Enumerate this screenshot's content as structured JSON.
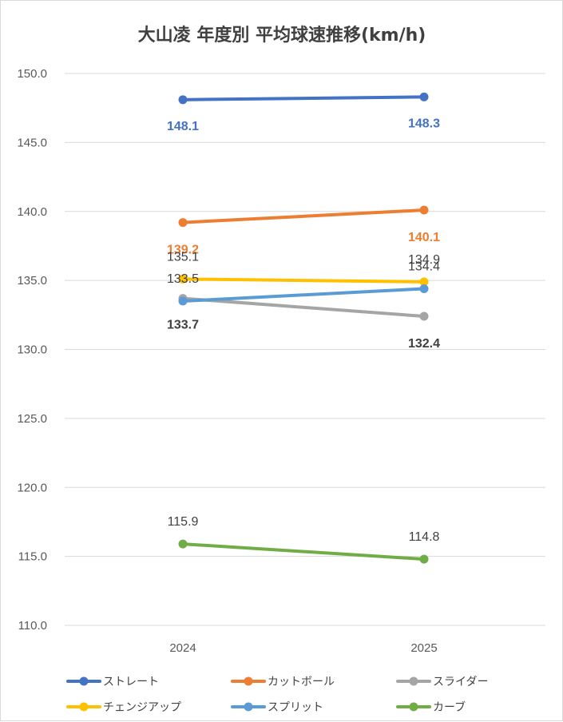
{
  "chart_data": {
    "type": "line",
    "title": "大山凌 年度別 平均球速推移(km/h)",
    "categories": [
      "2024",
      "2025"
    ],
    "ylim": [
      110,
      150
    ],
    "yticks": [
      "110.0",
      "115.0",
      "120.0",
      "125.0",
      "130.0",
      "135.0",
      "140.0",
      "145.0",
      "150.0"
    ],
    "grid": true,
    "legend_position": "bottom",
    "series": [
      {
        "name": "ストレート",
        "values": [
          148.1,
          148.3
        ],
        "labels": [
          "148.1",
          "148.3"
        ],
        "color": "#4472c4"
      },
      {
        "name": "カットボール",
        "values": [
          139.2,
          140.1
        ],
        "labels": [
          "139.2",
          "140.1"
        ],
        "color": "#ed7d31"
      },
      {
        "name": "スライダー",
        "values": [
          133.7,
          132.4
        ],
        "labels": [
          "133.7",
          "132.4"
        ],
        "color": "#a5a5a5"
      },
      {
        "name": "チェンジアップ",
        "values": [
          135.1,
          134.9
        ],
        "labels": [
          "135.1",
          "134.9"
        ],
        "color": "#ffc000"
      },
      {
        "name": "スプリット",
        "values": [
          133.5,
          134.4
        ],
        "labels": [
          "133.5",
          "134.4"
        ],
        "color": "#5b9bd5"
      },
      {
        "name": "カーブ",
        "values": [
          115.9,
          114.8
        ],
        "labels": [
          "115.9",
          "114.8"
        ],
        "color": "#70ad47"
      }
    ]
  }
}
